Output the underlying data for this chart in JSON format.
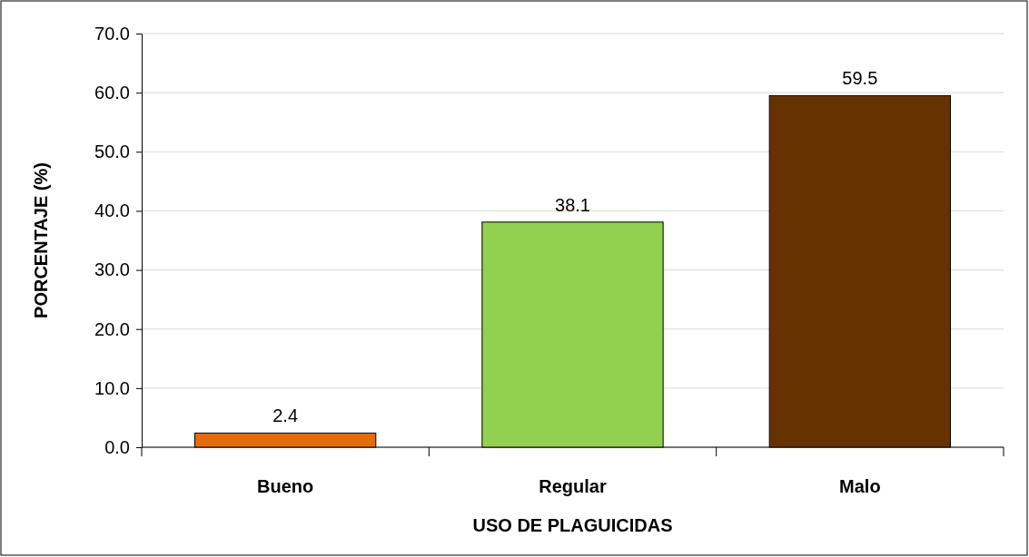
{
  "chart_data": {
    "type": "bar",
    "xlabel": "USO DE PLAGUICIDAS",
    "ylabel": "PORCENTAJE (%)",
    "categories": [
      "Bueno",
      "Regular",
      "Malo"
    ],
    "values": [
      2.4,
      38.1,
      59.5
    ],
    "colors": [
      "#e46c0a",
      "#92d050",
      "#663300"
    ],
    "ylim": [
      0,
      70
    ],
    "yticks": [
      {
        "value": 0,
        "label": "0.0"
      },
      {
        "value": 10,
        "label": "10.0"
      },
      {
        "value": 20,
        "label": "20.0"
      },
      {
        "value": 30,
        "label": "30.0"
      },
      {
        "value": 40,
        "label": "40.0"
      },
      {
        "value": 50,
        "label": "50.0"
      },
      {
        "value": 60,
        "label": "60.0"
      },
      {
        "value": 70,
        "label": "70.0"
      }
    ],
    "grid": "y",
    "data_labels": true
  }
}
